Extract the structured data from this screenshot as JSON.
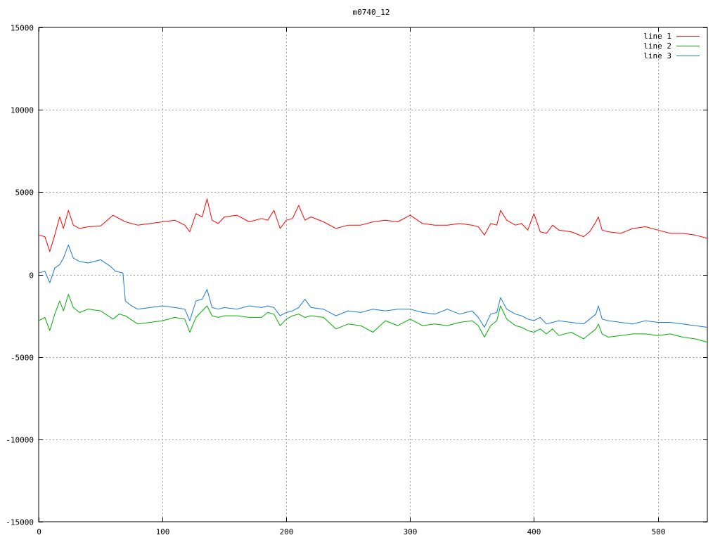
{
  "chart_data": {
    "type": "line",
    "title": "m0740_12",
    "xlabel": "",
    "ylabel": "",
    "xlim": [
      0,
      540
    ],
    "ylim": [
      -15000,
      15000
    ],
    "x_ticks": [
      0,
      100,
      200,
      300,
      400,
      500
    ],
    "y_ticks": [
      -15000,
      -10000,
      -5000,
      0,
      5000,
      10000,
      15000
    ],
    "grid": true,
    "legend_position": "top-right",
    "series": [
      {
        "name": "line 1",
        "color": "#ff0000",
        "x": [
          0,
          5,
          9,
          13,
          17,
          20,
          24,
          28,
          33,
          40,
          50,
          60,
          70,
          80,
          90,
          100,
          110,
          118,
          122,
          127,
          132,
          136,
          140,
          145,
          150,
          160,
          170,
          180,
          185,
          190,
          195,
          200,
          205,
          210,
          215,
          220,
          230,
          240,
          250,
          260,
          270,
          280,
          290,
          300,
          310,
          320,
          330,
          340,
          350,
          355,
          360,
          365,
          370,
          373,
          378,
          385,
          390,
          395,
          400,
          405,
          410,
          415,
          420,
          430,
          440,
          445,
          450,
          452,
          455,
          460,
          470,
          480,
          490,
          500,
          510,
          520,
          530,
          540
        ],
        "values": [
          2400,
          2300,
          1400,
          2400,
          3500,
          2800,
          3900,
          3000,
          2800,
          2900,
          2950,
          3600,
          3200,
          3000,
          3100,
          3200,
          3300,
          3000,
          2600,
          3700,
          3500,
          4600,
          3300,
          3100,
          3500,
          3600,
          3200,
          3400,
          3300,
          3900,
          2800,
          3300,
          3400,
          4200,
          3300,
          3500,
          3200,
          2800,
          3000,
          3000,
          3200,
          3300,
          3200,
          3600,
          3100,
          3000,
          3000,
          3100,
          3000,
          2900,
          2400,
          3100,
          3000,
          3900,
          3300,
          3000,
          3100,
          2700,
          3700,
          2600,
          2500,
          3000,
          2700,
          2600,
          2300,
          2600,
          3200,
          3500,
          2700,
          2600,
          2500,
          2800,
          2900,
          2700,
          2500,
          2500,
          2400,
          2200
        ]
      },
      {
        "name": "line 2",
        "color": "#00b000",
        "x": [
          0,
          5,
          9,
          13,
          17,
          20,
          24,
          28,
          33,
          40,
          50,
          60,
          65,
          70,
          80,
          90,
          100,
          110,
          118,
          122,
          127,
          132,
          136,
          140,
          145,
          150,
          160,
          170,
          180,
          185,
          190,
          195,
          200,
          205,
          210,
          215,
          220,
          230,
          240,
          250,
          260,
          270,
          280,
          290,
          300,
          310,
          320,
          330,
          340,
          350,
          355,
          360,
          365,
          370,
          373,
          378,
          385,
          390,
          395,
          400,
          405,
          410,
          415,
          420,
          430,
          440,
          445,
          450,
          452,
          455,
          460,
          470,
          480,
          490,
          500,
          510,
          520,
          530,
          540
        ],
        "values": [
          -2800,
          -2600,
          -3400,
          -2400,
          -1600,
          -2200,
          -1200,
          -2000,
          -2300,
          -2100,
          -2200,
          -2700,
          -2400,
          -2500,
          -3000,
          -2900,
          -2800,
          -2600,
          -2700,
          -3500,
          -2600,
          -2200,
          -1900,
          -2500,
          -2600,
          -2500,
          -2500,
          -2600,
          -2600,
          -2300,
          -2400,
          -3100,
          -2700,
          -2500,
          -2400,
          -2600,
          -2500,
          -2600,
          -3300,
          -3000,
          -3100,
          -3500,
          -2800,
          -3100,
          -2700,
          -3100,
          -3000,
          -3100,
          -2900,
          -2800,
          -3100,
          -3800,
          -3100,
          -2800,
          -1900,
          -2700,
          -3100,
          -3200,
          -3400,
          -3500,
          -3300,
          -3600,
          -3300,
          -3700,
          -3500,
          -3900,
          -3600,
          -3300,
          -3000,
          -3600,
          -3800,
          -3700,
          -3600,
          -3600,
          -3700,
          -3600,
          -3800,
          -3900,
          -4100
        ]
      },
      {
        "name": "line 3",
        "color": "#1a78d6",
        "x": [
          0,
          5,
          9,
          13,
          17,
          20,
          24,
          28,
          33,
          40,
          50,
          58,
          62,
          68,
          70,
          75,
          80,
          90,
          100,
          110,
          118,
          122,
          127,
          132,
          136,
          140,
          145,
          150,
          160,
          170,
          180,
          185,
          190,
          195,
          200,
          205,
          210,
          215,
          220,
          230,
          240,
          250,
          260,
          270,
          280,
          290,
          300,
          310,
          320,
          330,
          340,
          350,
          355,
          360,
          365,
          370,
          373,
          378,
          385,
          390,
          395,
          400,
          405,
          410,
          415,
          420,
          430,
          440,
          445,
          450,
          452,
          455,
          460,
          470,
          480,
          490,
          500,
          510,
          520,
          530,
          540
        ],
        "values": [
          100,
          200,
          -500,
          400,
          600,
          1000,
          1800,
          1000,
          800,
          700,
          900,
          500,
          200,
          100,
          -1600,
          -1900,
          -2100,
          -2000,
          -1900,
          -2000,
          -2100,
          -2800,
          -1600,
          -1500,
          -900,
          -2000,
          -2100,
          -2000,
          -2100,
          -1900,
          -2000,
          -1900,
          -2000,
          -2500,
          -2300,
          -2200,
          -2000,
          -1500,
          -2000,
          -2100,
          -2500,
          -2200,
          -2300,
          -2100,
          -2200,
          -2100,
          -2100,
          -2300,
          -2400,
          -2100,
          -2400,
          -2200,
          -2600,
          -3200,
          -2400,
          -2300,
          -1400,
          -2100,
          -2400,
          -2500,
          -2700,
          -2800,
          -2600,
          -3000,
          -2900,
          -2800,
          -2900,
          -3000,
          -2700,
          -2400,
          -1900,
          -2700,
          -2800,
          -2900,
          -3000,
          -2800,
          -2900,
          -2900,
          -3000,
          -3100,
          -3200
        ]
      }
    ]
  }
}
